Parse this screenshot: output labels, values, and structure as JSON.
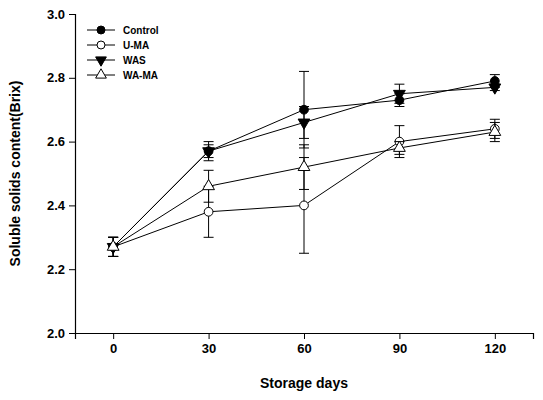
{
  "chart_data": {
    "type": "line",
    "x_label": "Storage days",
    "y_label": "Soluble solids content(Brix)",
    "x": [
      0,
      30,
      60,
      90,
      120
    ],
    "xlim": [
      -12,
      132
    ],
    "xticks": [
      0,
      30,
      60,
      90,
      120
    ],
    "ylim": [
      2.0,
      3.0
    ],
    "yticks": [
      {
        "value": 2.0,
        "label": "2.0"
      },
      2.2,
      2.4,
      2.6,
      2.8,
      {
        "value": 3.0,
        "label": "3.0"
      }
    ],
    "legend": "upper left",
    "series": [
      {
        "name": "Control",
        "color": "#000000",
        "marker": "circle",
        "line_style": "solid",
        "values": [
          2.27,
          2.57,
          2.7,
          2.73,
          2.79
        ],
        "errors": [
          0.03,
          0.03,
          0.12,
          0.02,
          0.02
        ]
      },
      {
        "name": "U-MA",
        "color": "#000000",
        "marker": "circle-open",
        "line_style": "solid",
        "values": [
          2.27,
          2.38,
          2.4,
          2.6,
          2.64
        ],
        "errors": [
          0.03,
          0.08,
          0.15,
          0.05,
          0.03
        ]
      },
      {
        "name": "WAS",
        "color": "#000000",
        "marker": "triangle-down",
        "line_style": "solid",
        "values": [
          2.27,
          2.57,
          2.66,
          2.75,
          2.77
        ],
        "errors": [
          0.03,
          0.02,
          0.05,
          0.03,
          0.01
        ]
      },
      {
        "name": "WA-MA",
        "color": "#000000",
        "marker": "triangle-up-open",
        "line_style": "solid",
        "values": [
          2.27,
          2.46,
          2.52,
          2.58,
          2.63
        ],
        "errors": [
          0.03,
          0.05,
          0.07,
          0.02,
          0.03
        ]
      }
    ]
  }
}
